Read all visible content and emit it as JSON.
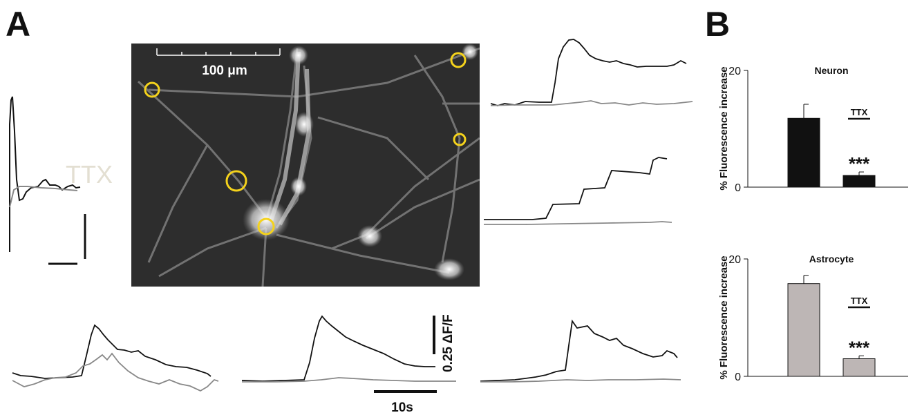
{
  "panel_labels": {
    "a": "A",
    "b": "B"
  },
  "micrograph": {
    "scale_label": "100 μm"
  },
  "inset": {
    "label": "TTX"
  },
  "scale_bars": {
    "amplitude": "0.25 ΔF/F",
    "time": "10s"
  },
  "colors": {
    "control": "#111111",
    "ttx_trace": "#888888",
    "ttx_inset_label": "#e3dfd2",
    "neuron_bar": "#111111",
    "astrocyte_bar": "#bdb6b5",
    "roi": "#f4d21c"
  },
  "chart_data": [
    {
      "type": "bar",
      "title": "Neuron",
      "ylabel": "% Fluorescence increase",
      "ylim": [
        0,
        20
      ],
      "yticks": [
        0,
        20
      ],
      "categories": [
        "",
        "TTX"
      ],
      "values": [
        11.8,
        2.0
      ],
      "errors": [
        2.4,
        0.6
      ],
      "annotations": [
        "",
        "***"
      ]
    },
    {
      "type": "bar",
      "title": "Astrocyte",
      "ylabel": "% Fluorescence increase",
      "ylim": [
        0,
        20
      ],
      "yticks": [
        0,
        20
      ],
      "categories": [
        "",
        "TTX"
      ],
      "values": [
        15.8,
        3.0
      ],
      "errors": [
        1.4,
        0.5
      ],
      "annotations": [
        "",
        "***"
      ]
    }
  ]
}
